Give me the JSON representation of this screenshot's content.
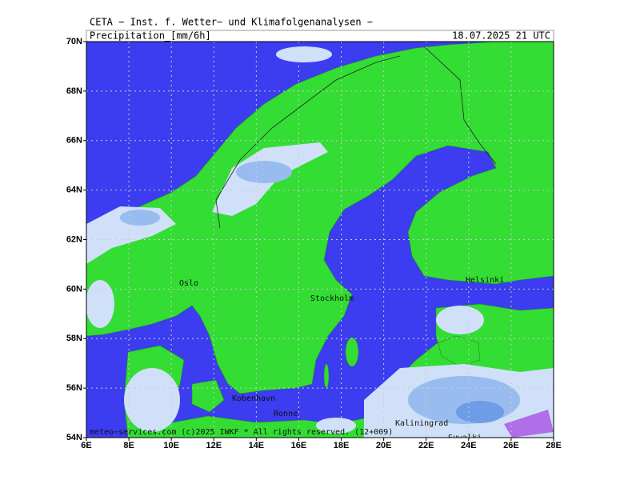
{
  "header": {
    "source": "CETA − Inst. f. Wetter− und Klimafolgenanalysen −",
    "variable": "Precipitation_[mm/6h]",
    "valid_time": "18.07.2025 21 UTC"
  },
  "map": {
    "lat_ticks": [
      {
        "value": 70,
        "label": "70N"
      },
      {
        "value": 68,
        "label": "68N"
      },
      {
        "value": 66,
        "label": "66N"
      },
      {
        "value": 64,
        "label": "64N"
      },
      {
        "value": 62,
        "label": "62N"
      },
      {
        "value": 60,
        "label": "60N"
      },
      {
        "value": 58,
        "label": "58N"
      },
      {
        "value": 56,
        "label": "56N"
      },
      {
        "value": 54,
        "label": "54N"
      }
    ],
    "lon_ticks": [
      {
        "value": 6,
        "label": "6E"
      },
      {
        "value": 8,
        "label": "8E"
      },
      {
        "value": 10,
        "label": "10E"
      },
      {
        "value": 12,
        "label": "12E"
      },
      {
        "value": 14,
        "label": "14E"
      },
      {
        "value": 16,
        "label": "16E"
      },
      {
        "value": 18,
        "label": "18E"
      },
      {
        "value": 20,
        "label": "20E"
      },
      {
        "value": 22,
        "label": "22E"
      },
      {
        "value": 24,
        "label": "24E"
      },
      {
        "value": 26,
        "label": "26E"
      },
      {
        "value": 28,
        "label": "28E"
      }
    ],
    "cities": [
      "Oslo",
      "Stockholm",
      "Helsinki",
      "Kobenhavn",
      "Ronne",
      "Kaliningrad",
      "Suwalki"
    ]
  },
  "footer": {
    "copyright": "meteo−services.com (c)2025 IWKF * All rights reserved. (12+009)"
  }
}
